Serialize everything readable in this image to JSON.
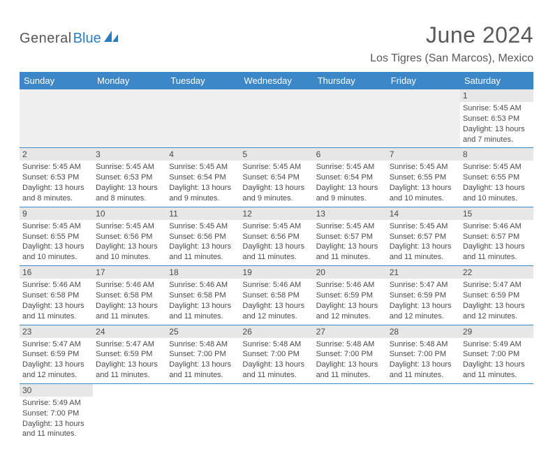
{
  "brand": {
    "general": "General",
    "blue": "Blue"
  },
  "title": "June 2024",
  "location": "Los Tigres (San Marcos), Mexico",
  "colors": {
    "header_bg": "#3c87c7",
    "header_fg": "#ffffff",
    "daybar_bg": "#e7e7e7",
    "rule": "#3c87c7",
    "text": "#4a4a4a",
    "title": "#595959",
    "logo_blue": "#2b7cc0"
  },
  "dow": [
    "Sunday",
    "Monday",
    "Tuesday",
    "Wednesday",
    "Thursday",
    "Friday",
    "Saturday"
  ],
  "weeks": [
    [
      {
        "empty": true
      },
      {
        "empty": true
      },
      {
        "empty": true
      },
      {
        "empty": true
      },
      {
        "empty": true
      },
      {
        "empty": true
      },
      {
        "n": "1",
        "sunrise": "Sunrise: 5:45 AM",
        "sunset": "Sunset: 6:53 PM",
        "day1": "Daylight: 13 hours",
        "day2": "and 7 minutes."
      }
    ],
    [
      {
        "n": "2",
        "sunrise": "Sunrise: 5:45 AM",
        "sunset": "Sunset: 6:53 PM",
        "day1": "Daylight: 13 hours",
        "day2": "and 8 minutes."
      },
      {
        "n": "3",
        "sunrise": "Sunrise: 5:45 AM",
        "sunset": "Sunset: 6:53 PM",
        "day1": "Daylight: 13 hours",
        "day2": "and 8 minutes."
      },
      {
        "n": "4",
        "sunrise": "Sunrise: 5:45 AM",
        "sunset": "Sunset: 6:54 PM",
        "day1": "Daylight: 13 hours",
        "day2": "and 9 minutes."
      },
      {
        "n": "5",
        "sunrise": "Sunrise: 5:45 AM",
        "sunset": "Sunset: 6:54 PM",
        "day1": "Daylight: 13 hours",
        "day2": "and 9 minutes."
      },
      {
        "n": "6",
        "sunrise": "Sunrise: 5:45 AM",
        "sunset": "Sunset: 6:54 PM",
        "day1": "Daylight: 13 hours",
        "day2": "and 9 minutes."
      },
      {
        "n": "7",
        "sunrise": "Sunrise: 5:45 AM",
        "sunset": "Sunset: 6:55 PM",
        "day1": "Daylight: 13 hours",
        "day2": "and 10 minutes."
      },
      {
        "n": "8",
        "sunrise": "Sunrise: 5:45 AM",
        "sunset": "Sunset: 6:55 PM",
        "day1": "Daylight: 13 hours",
        "day2": "and 10 minutes."
      }
    ],
    [
      {
        "n": "9",
        "sunrise": "Sunrise: 5:45 AM",
        "sunset": "Sunset: 6:55 PM",
        "day1": "Daylight: 13 hours",
        "day2": "and 10 minutes."
      },
      {
        "n": "10",
        "sunrise": "Sunrise: 5:45 AM",
        "sunset": "Sunset: 6:56 PM",
        "day1": "Daylight: 13 hours",
        "day2": "and 10 minutes."
      },
      {
        "n": "11",
        "sunrise": "Sunrise: 5:45 AM",
        "sunset": "Sunset: 6:56 PM",
        "day1": "Daylight: 13 hours",
        "day2": "and 11 minutes."
      },
      {
        "n": "12",
        "sunrise": "Sunrise: 5:45 AM",
        "sunset": "Sunset: 6:56 PM",
        "day1": "Daylight: 13 hours",
        "day2": "and 11 minutes."
      },
      {
        "n": "13",
        "sunrise": "Sunrise: 5:45 AM",
        "sunset": "Sunset: 6:57 PM",
        "day1": "Daylight: 13 hours",
        "day2": "and 11 minutes."
      },
      {
        "n": "14",
        "sunrise": "Sunrise: 5:45 AM",
        "sunset": "Sunset: 6:57 PM",
        "day1": "Daylight: 13 hours",
        "day2": "and 11 minutes."
      },
      {
        "n": "15",
        "sunrise": "Sunrise: 5:46 AM",
        "sunset": "Sunset: 6:57 PM",
        "day1": "Daylight: 13 hours",
        "day2": "and 11 minutes."
      }
    ],
    [
      {
        "n": "16",
        "sunrise": "Sunrise: 5:46 AM",
        "sunset": "Sunset: 6:58 PM",
        "day1": "Daylight: 13 hours",
        "day2": "and 11 minutes."
      },
      {
        "n": "17",
        "sunrise": "Sunrise: 5:46 AM",
        "sunset": "Sunset: 6:58 PM",
        "day1": "Daylight: 13 hours",
        "day2": "and 11 minutes."
      },
      {
        "n": "18",
        "sunrise": "Sunrise: 5:46 AM",
        "sunset": "Sunset: 6:58 PM",
        "day1": "Daylight: 13 hours",
        "day2": "and 11 minutes."
      },
      {
        "n": "19",
        "sunrise": "Sunrise: 5:46 AM",
        "sunset": "Sunset: 6:58 PM",
        "day1": "Daylight: 13 hours",
        "day2": "and 12 minutes."
      },
      {
        "n": "20",
        "sunrise": "Sunrise: 5:46 AM",
        "sunset": "Sunset: 6:59 PM",
        "day1": "Daylight: 13 hours",
        "day2": "and 12 minutes."
      },
      {
        "n": "21",
        "sunrise": "Sunrise: 5:47 AM",
        "sunset": "Sunset: 6:59 PM",
        "day1": "Daylight: 13 hours",
        "day2": "and 12 minutes."
      },
      {
        "n": "22",
        "sunrise": "Sunrise: 5:47 AM",
        "sunset": "Sunset: 6:59 PM",
        "day1": "Daylight: 13 hours",
        "day2": "and 12 minutes."
      }
    ],
    [
      {
        "n": "23",
        "sunrise": "Sunrise: 5:47 AM",
        "sunset": "Sunset: 6:59 PM",
        "day1": "Daylight: 13 hours",
        "day2": "and 12 minutes."
      },
      {
        "n": "24",
        "sunrise": "Sunrise: 5:47 AM",
        "sunset": "Sunset: 6:59 PM",
        "day1": "Daylight: 13 hours",
        "day2": "and 11 minutes."
      },
      {
        "n": "25",
        "sunrise": "Sunrise: 5:48 AM",
        "sunset": "Sunset: 7:00 PM",
        "day1": "Daylight: 13 hours",
        "day2": "and 11 minutes."
      },
      {
        "n": "26",
        "sunrise": "Sunrise: 5:48 AM",
        "sunset": "Sunset: 7:00 PM",
        "day1": "Daylight: 13 hours",
        "day2": "and 11 minutes."
      },
      {
        "n": "27",
        "sunrise": "Sunrise: 5:48 AM",
        "sunset": "Sunset: 7:00 PM",
        "day1": "Daylight: 13 hours",
        "day2": "and 11 minutes."
      },
      {
        "n": "28",
        "sunrise": "Sunrise: 5:48 AM",
        "sunset": "Sunset: 7:00 PM",
        "day1": "Daylight: 13 hours",
        "day2": "and 11 minutes."
      },
      {
        "n": "29",
        "sunrise": "Sunrise: 5:49 AM",
        "sunset": "Sunset: 7:00 PM",
        "day1": "Daylight: 13 hours",
        "day2": "and 11 minutes."
      }
    ],
    [
      {
        "n": "30",
        "sunrise": "Sunrise: 5:49 AM",
        "sunset": "Sunset: 7:00 PM",
        "day1": "Daylight: 13 hours",
        "day2": "and 11 minutes."
      },
      {
        "trailing": true
      },
      {
        "trailing": true
      },
      {
        "trailing": true
      },
      {
        "trailing": true
      },
      {
        "trailing": true
      },
      {
        "trailing": true
      }
    ]
  ]
}
